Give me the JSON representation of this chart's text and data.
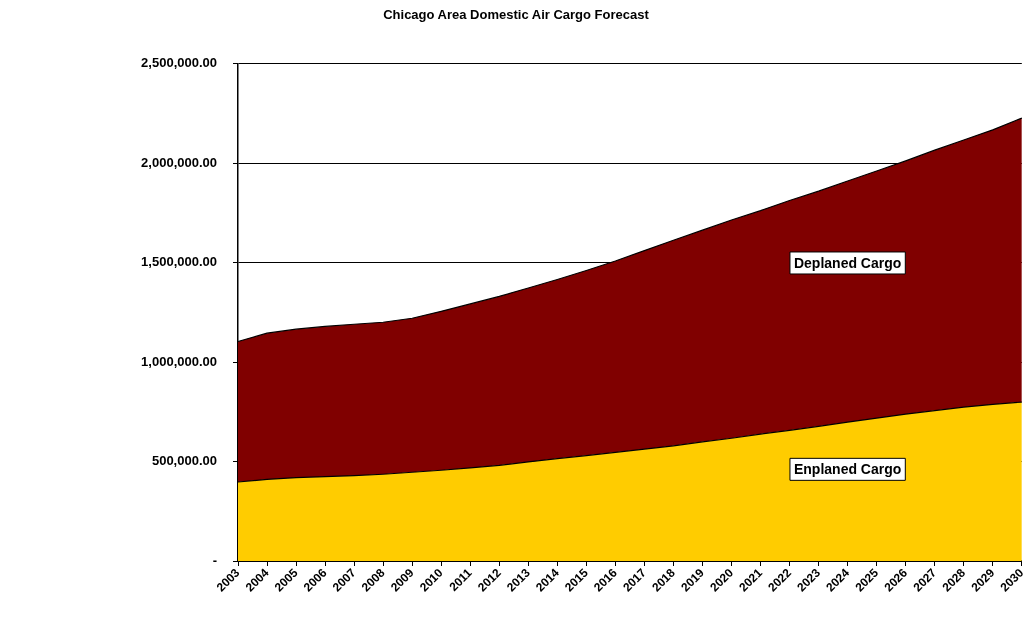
{
  "chart_data": {
    "type": "area",
    "title": "Chicago Area Domestic Air Cargo Forecast",
    "categories": [
      "2003",
      "2004",
      "2005",
      "2006",
      "2007",
      "2008",
      "2009",
      "2010",
      "2011",
      "2012",
      "2013",
      "2014",
      "2015",
      "2016",
      "2017",
      "2018",
      "2019",
      "2020",
      "2021",
      "2022",
      "2023",
      "2024",
      "2025",
      "2026",
      "2027",
      "2028",
      "2029",
      "2030"
    ],
    "stacked": true,
    "series": [
      {
        "name": "Enplaned Cargo",
        "color": "#ffcc00",
        "values": [
          397000,
          410000,
          419000,
          424000,
          429000,
          436000,
          446000,
          456000,
          468000,
          481000,
          498000,
          515000,
          530000,
          546000,
          562000,
          579000,
          599000,
          617000,
          638000,
          657000,
          677000,
          698000,
          718000,
          738000,
          756000,
          773000,
          787000,
          799000
        ]
      },
      {
        "name": "Deplaned Cargo",
        "color": "#800000",
        "values": [
          706000,
          735000,
          746000,
          755000,
          761000,
          764000,
          774000,
          799000,
          824000,
          849000,
          874000,
          900000,
          930000,
          962000,
          998000,
          1033000,
          1064000,
          1097000,
          1123000,
          1155000,
          1182000,
          1212000,
          1242000,
          1273000,
          1309000,
          1343000,
          1380000,
          1427000
        ]
      }
    ],
    "ylim": [
      0,
      2500000
    ],
    "yticks": [
      {
        "value": 0,
        "label": "-"
      },
      {
        "value": 500000,
        "label": "500,000.00"
      },
      {
        "value": 1000000,
        "label": "1,000,000.00"
      },
      {
        "value": 1500000,
        "label": "1,500,000.00"
      },
      {
        "value": 2000000,
        "label": "2,000,000.00"
      },
      {
        "value": 2500000,
        "label": "2,500,000.00"
      }
    ],
    "grid": "y",
    "legend": false
  }
}
